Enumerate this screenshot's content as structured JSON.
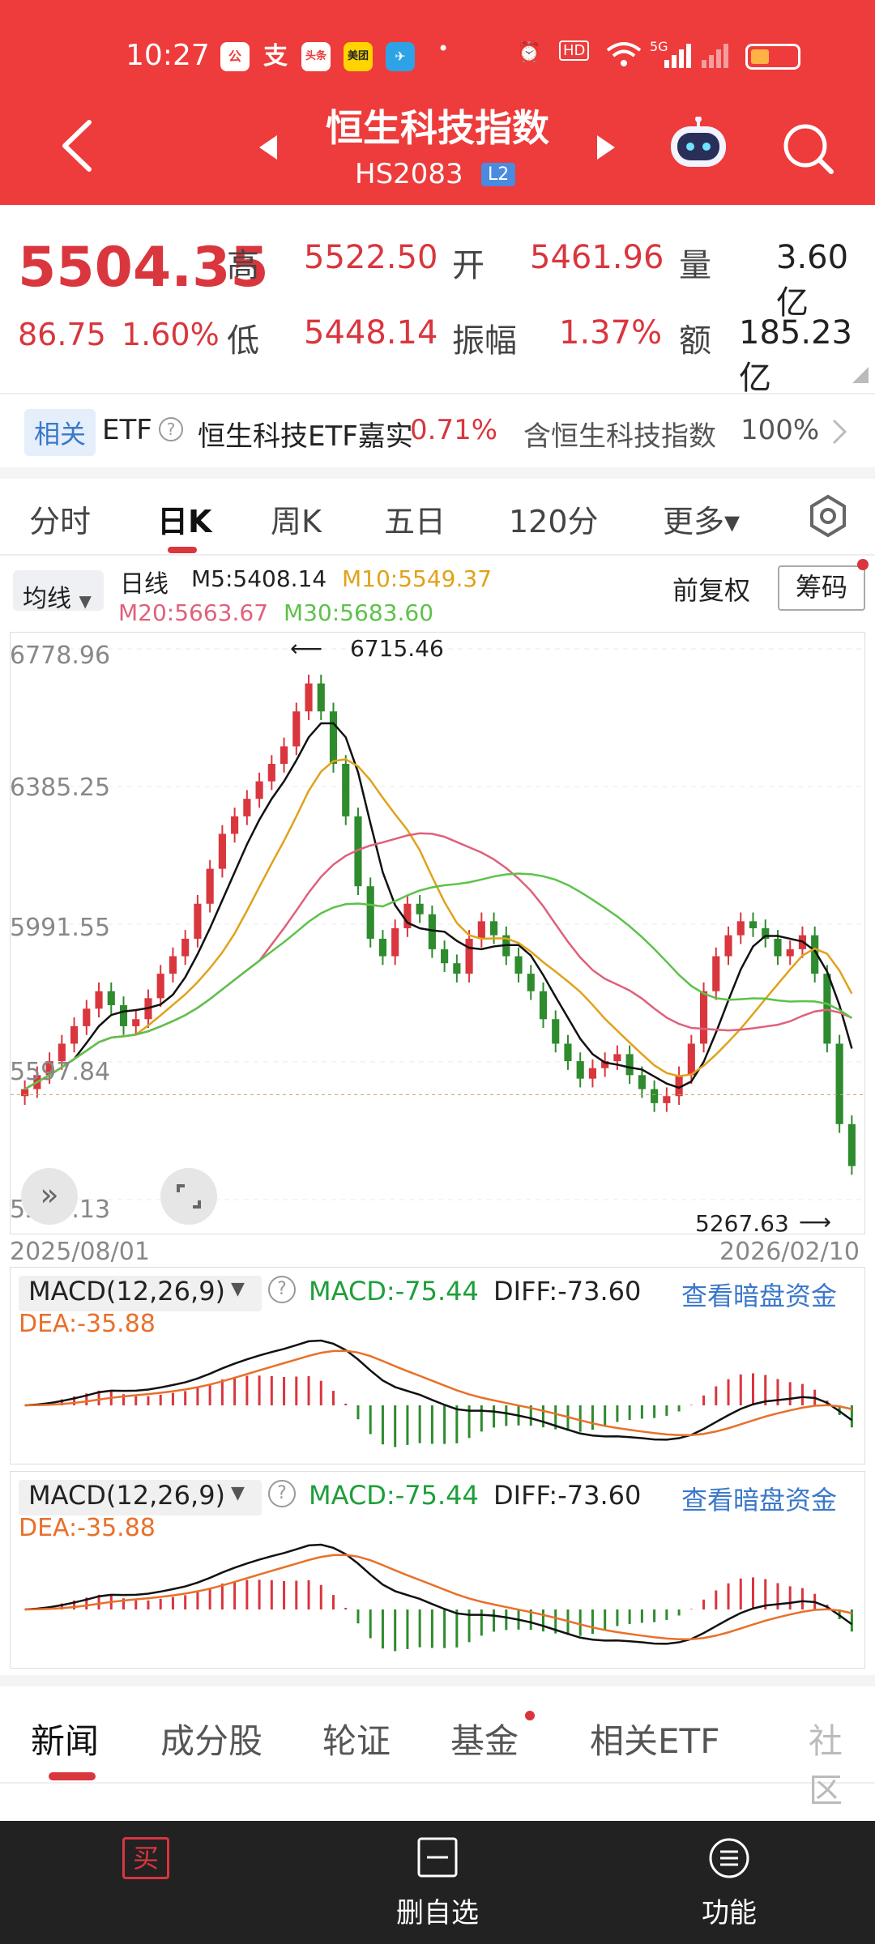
{
  "status_bar": {
    "time": "10:27",
    "apps": [
      "公",
      "支",
      "头条",
      "美团",
      "✈"
    ],
    "dot": "•",
    "hd": "HD",
    "net": "5G"
  },
  "header": {
    "title": "恒生科技指数",
    "code": "HS2083",
    "level_badge": "L2"
  },
  "quote": {
    "price": "5504.35",
    "change": "86.75",
    "change_pct": "1.60%",
    "high_label": "高",
    "high": "5522.50",
    "low_label": "低",
    "low": "5448.14",
    "open_label": "开",
    "open": "5461.96",
    "amplitude_label": "振幅",
    "amplitude": "1.37%",
    "volume_label": "量",
    "volume": "3.60亿",
    "amount_label": "额",
    "amount": "185.23亿"
  },
  "etf_row": {
    "tag": "相关",
    "etf_label": "ETF",
    "help": "?",
    "name": "恒生科技ETF嘉实",
    "pct": "0.71%",
    "contains": "含恒生科技指数",
    "weight": "100%"
  },
  "kline_tabs": [
    {
      "label": "分时"
    },
    {
      "label": "日K"
    },
    {
      "label": "周K"
    },
    {
      "label": "五日"
    },
    {
      "label": "120分"
    },
    {
      "label": "更多▾"
    }
  ],
  "legend": {
    "ma_select": "均线",
    "period": "日线",
    "m5": "M5:5408.14",
    "m10": "M10:5549.37",
    "m20": "M20:5663.67",
    "m30": "M30:5683.60",
    "adjust": "前复权",
    "chips": "筹码"
  },
  "chart_data": {
    "type": "candlestick",
    "y_ticks": [
      "6778.96",
      "6385.25",
      "5991.55",
      "5597.84",
      "5204.13"
    ],
    "ylim": [
      5204.13,
      6778.96
    ],
    "max_annotation": "6715.46",
    "min_annotation": "5267.63",
    "x_start": "2025/08/01",
    "x_end": "2026/02/10",
    "close_approx": [
      5520,
      5560,
      5600,
      5650,
      5700,
      5750,
      5800,
      5760,
      5700,
      5720,
      5780,
      5850,
      5900,
      5950,
      6050,
      6150,
      6250,
      6300,
      6350,
      6400,
      6450,
      6500,
      6600,
      6680,
      6600,
      6450,
      6300,
      6100,
      5950,
      5900,
      5980,
      6050,
      6020,
      5920,
      5880,
      5850,
      5950,
      6000,
      5960,
      5900,
      5850,
      5800,
      5720,
      5650,
      5600,
      5550,
      5580,
      5600,
      5620,
      5560,
      5520,
      5480,
      5500,
      5560,
      5650,
      5800,
      5900,
      5960,
      6000,
      5980,
      5950,
      5900,
      5920,
      5960,
      5850,
      5650,
      5420,
      5300
    ],
    "colors": {
      "up": "#d9363e",
      "down": "#2e8b2e",
      "m5": "#111111",
      "m10": "#e0a21a",
      "m20": "#e0607a",
      "m30": "#5cc24a"
    }
  },
  "macd1": {
    "select": "MACD(12,26,9)",
    "macd": "MACD:-75.44",
    "diff": "DIFF:-73.60",
    "dea": "DEA:-35.88",
    "link": "查看暗盘资金"
  },
  "macd2": {
    "select": "MACD(12,26,9)",
    "macd": "MACD:-75.44",
    "diff": "DIFF:-73.60",
    "dea": "DEA:-35.88",
    "link": "查看暗盘资金"
  },
  "news_tabs": [
    {
      "label": "新闻"
    },
    {
      "label": "成分股"
    },
    {
      "label": "轮证"
    },
    {
      "label": "基金"
    },
    {
      "label": "相关ETF"
    },
    {
      "label": "社区"
    }
  ],
  "bottom_bar": {
    "buy": "买",
    "delete_watch": "删自选",
    "functions": "功能"
  }
}
